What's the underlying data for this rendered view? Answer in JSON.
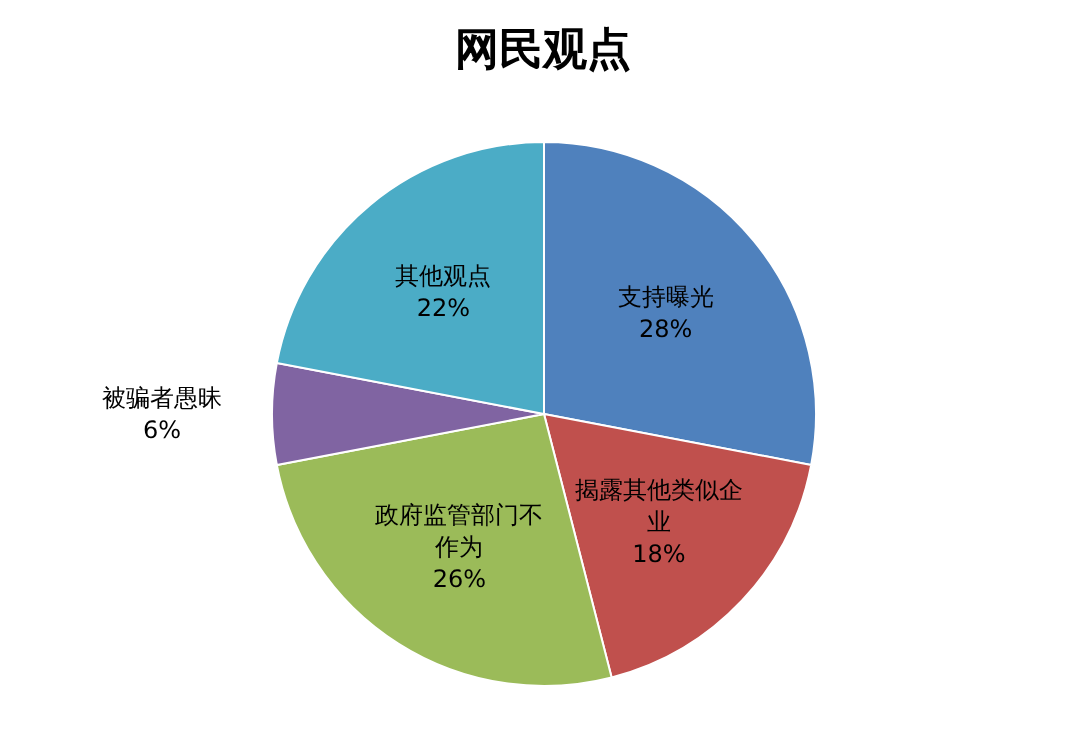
{
  "chart_data": {
    "type": "pie",
    "title": "网民观点",
    "categories": [
      "支持曝光",
      "揭露其他类似企业",
      "政府监管部门不作为",
      "被骗者愚昧",
      "其他观点"
    ],
    "values": [
      28,
      18,
      26,
      6,
      22
    ],
    "colors": [
      "#4f81bd",
      "#c0504d",
      "#9bbb59",
      "#8064a2",
      "#4bacc6"
    ],
    "value_labels": [
      "28%",
      "18%",
      "26%",
      "6%",
      "22%"
    ]
  }
}
